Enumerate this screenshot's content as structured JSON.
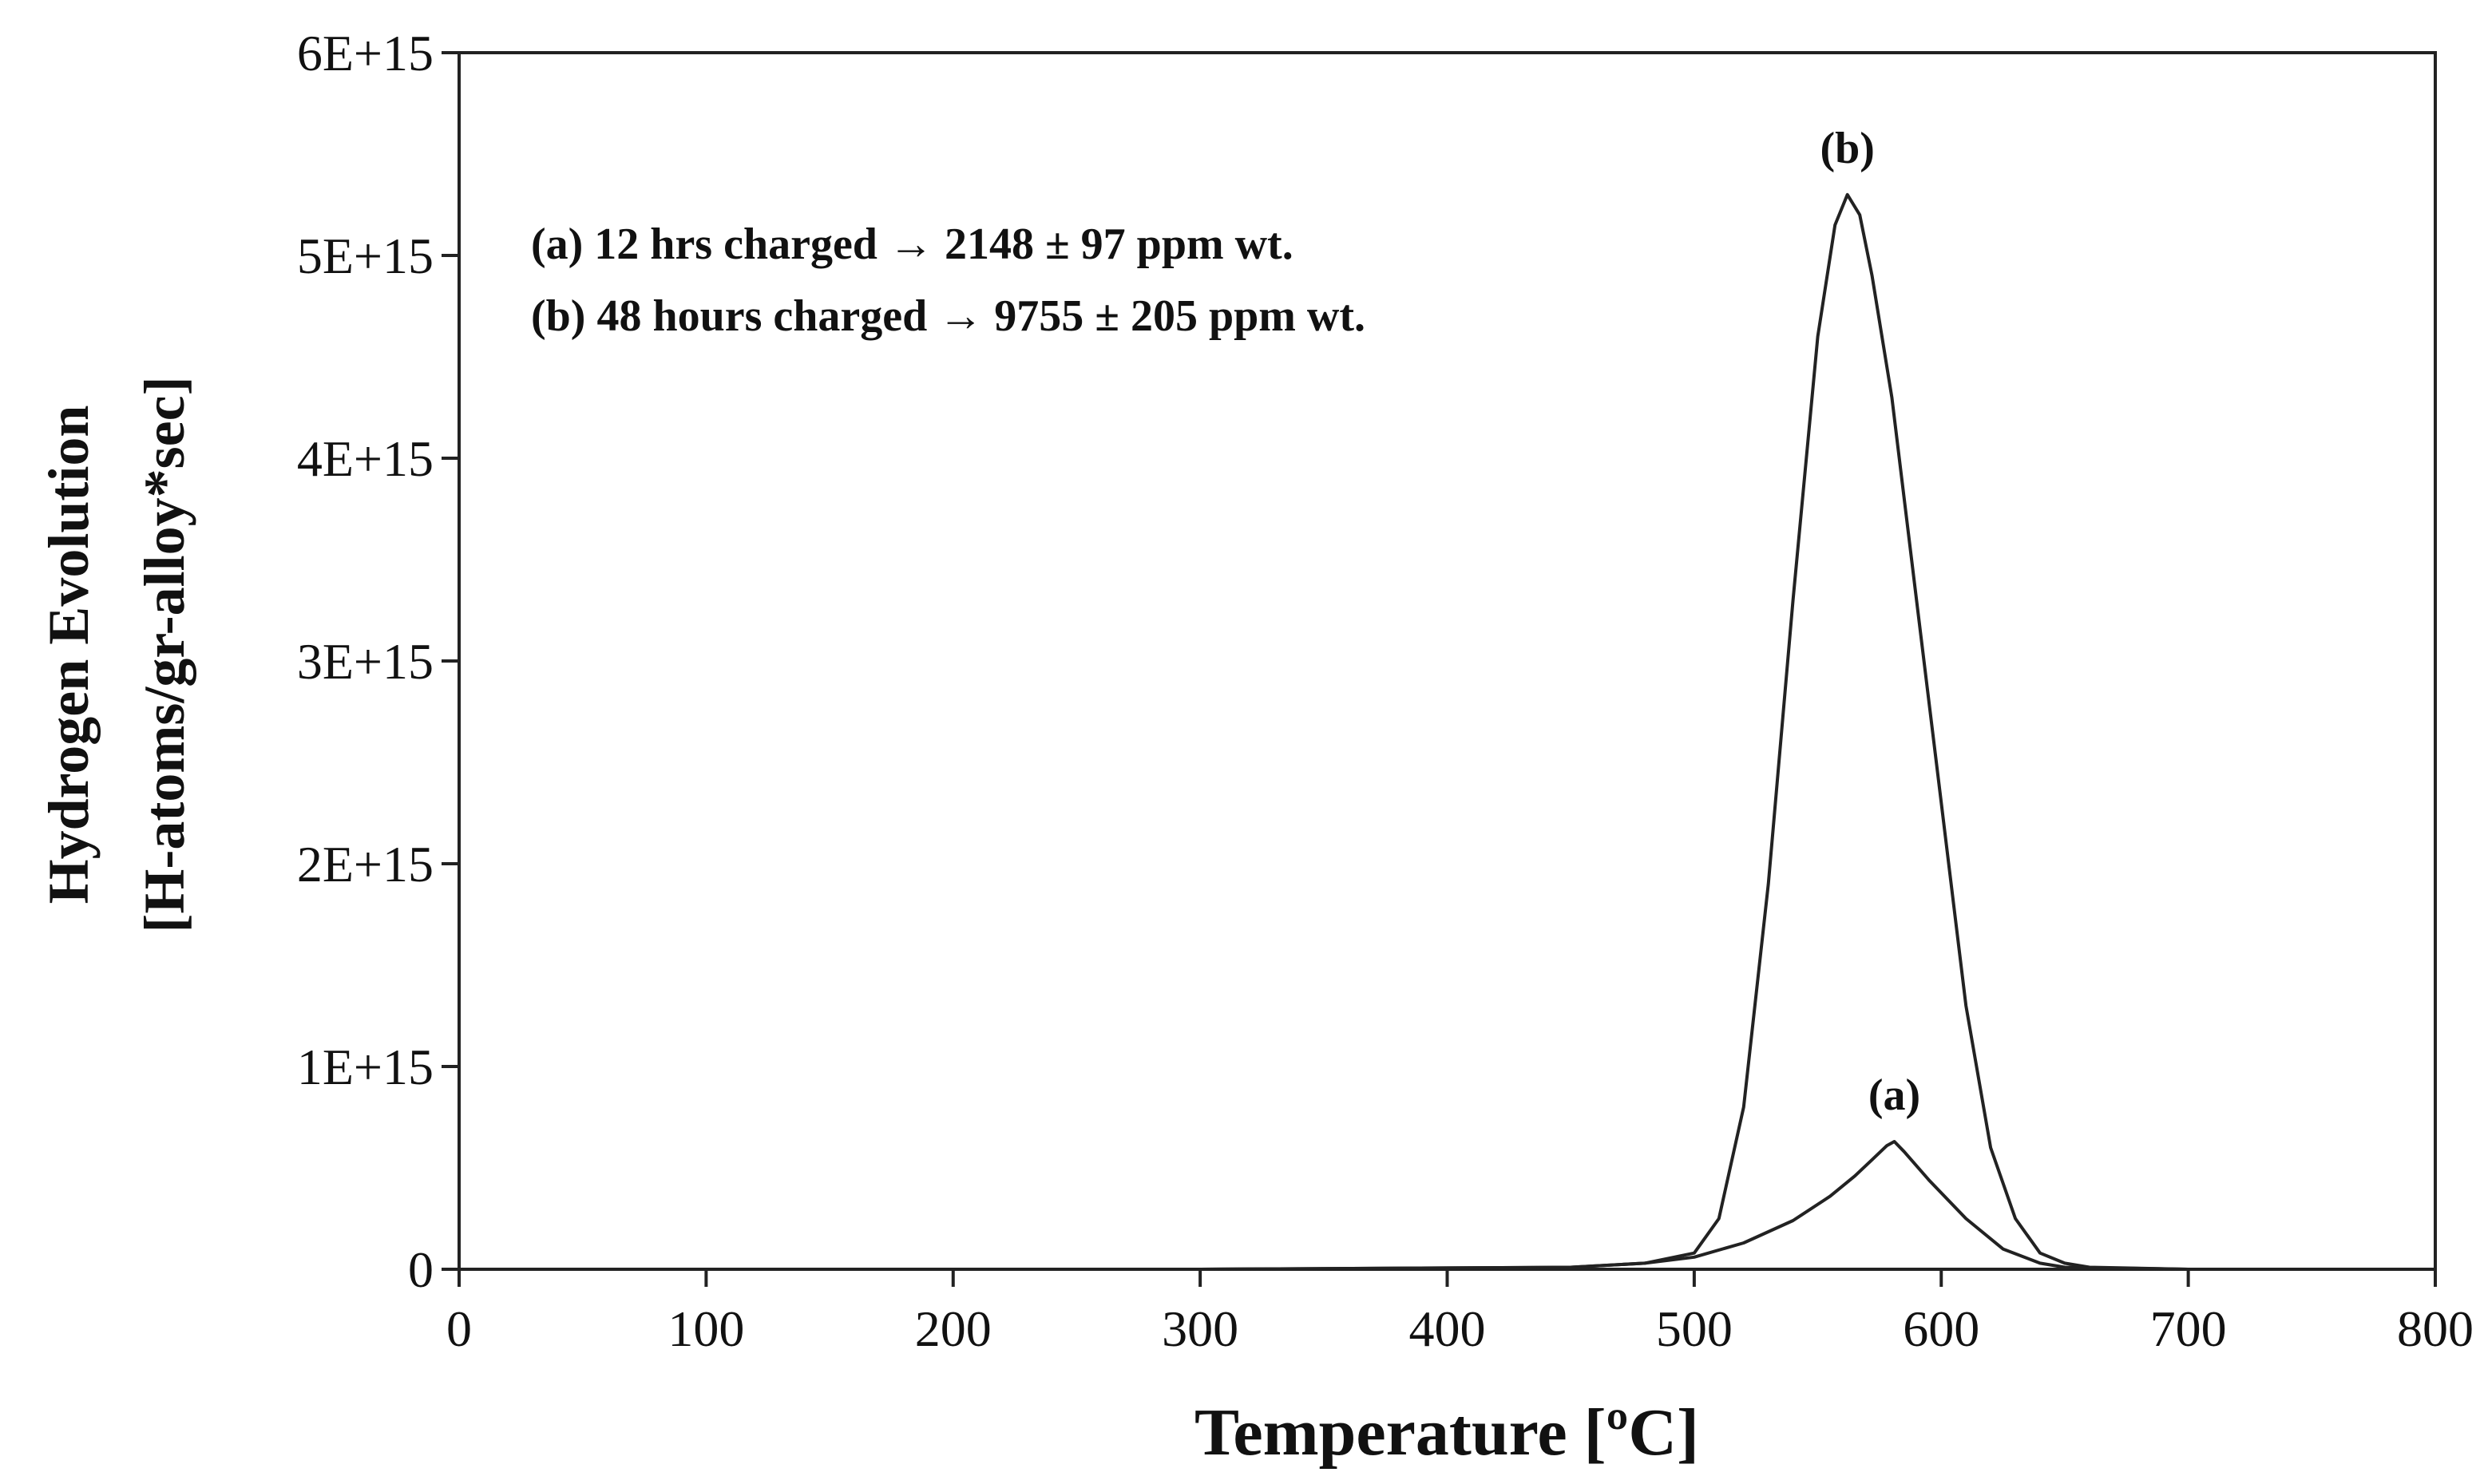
{
  "chart_data": {
    "type": "line",
    "xlabel": "Temperature [ºC]",
    "ylabel": [
      "Hydrogen Evolution",
      "[H-atoms/gr-alloy*sec]"
    ],
    "xlim": [
      0,
      800
    ],
    "ylim": [
      0,
      6000000000000000.0
    ],
    "x_ticks": [
      0,
      100,
      200,
      300,
      400,
      500,
      600,
      700,
      800
    ],
    "y_ticks": [
      0,
      1000000000000000.0,
      2000000000000000.0,
      3000000000000000.0,
      4000000000000000.0,
      5000000000000000.0,
      6000000000000000.0
    ],
    "x_tick_labels": [
      "0",
      "100",
      "200",
      "300",
      "400",
      "500",
      "600",
      "700",
      "800"
    ],
    "y_tick_labels": [
      "0",
      "1E+15",
      "2E+15",
      "3E+15",
      "4E+15",
      "5E+15",
      "6E+15"
    ],
    "grid": false,
    "legend_lines": [
      "(a) 12 hrs charged → 2148 ± 97 ppm wt.",
      "(b) 48 hours charged → 9755 ± 205 ppm wt."
    ],
    "series": [
      {
        "name": "(a)",
        "x": [
          25,
          300,
          450,
          480,
          500,
          520,
          540,
          555,
          565,
          572,
          578,
          581,
          585,
          595,
          610,
          625,
          640,
          650,
          700
        ],
        "y": [
          0,
          0,
          10000000000000.0,
          30000000000000.0,
          60000000000000.0,
          130000000000000.0,
          240000000000000.0,
          360000000000000.0,
          460000000000000.0,
          540000000000000.0,
          610000000000000.0,
          630000000000000.0,
          580000000000000.0,
          440000000000000.0,
          250000000000000.0,
          100000000000000.0,
          30000000000000.0,
          10000000000000.0,
          0
        ]
      },
      {
        "name": "(b)",
        "x": [
          25,
          300,
          450,
          480,
          500,
          510,
          520,
          530,
          540,
          550,
          557,
          562,
          567,
          572,
          580,
          590,
          600,
          610,
          620,
          630,
          640,
          650,
          660,
          700
        ],
        "y": [
          0,
          0,
          10000000000000.0,
          30000000000000.0,
          80000000000000.0,
          250000000000000.0,
          800000000000000.0,
          1900000000000000.0,
          3300000000000000.0,
          4600000000000000.0,
          5150000000000000.0,
          5300000000000000.0,
          5200000000000000.0,
          4900000000000000.0,
          4300000000000000.0,
          3300000000000000.0,
          2300000000000000.0,
          1300000000000000.0,
          600000000000000.0,
          250000000000000.0,
          80000000000000.0,
          30000000000000.0,
          10000000000000.0,
          0
        ]
      }
    ],
    "annotations": [
      {
        "text": "(b)",
        "x": 562,
        "y": 5300000000000000.0
      },
      {
        "text": "(a)",
        "x": 581,
        "y": 630000000000000.0
      }
    ]
  }
}
